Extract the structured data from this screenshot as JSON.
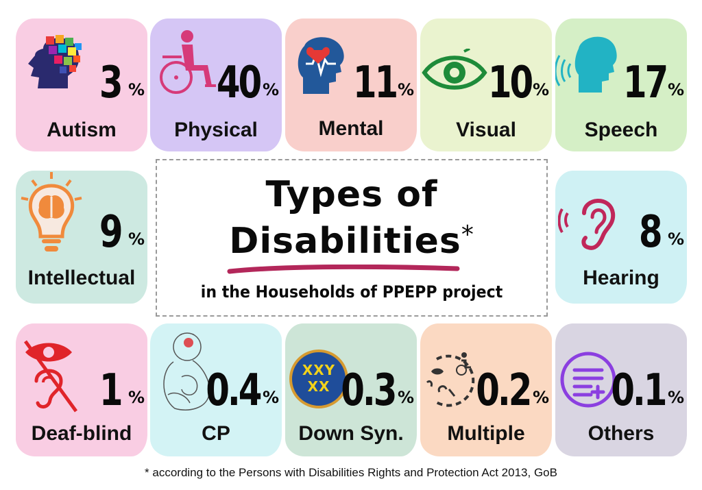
{
  "title": {
    "line1": "Types of",
    "line2": "Disabilities",
    "asterisk": "*",
    "subtitle": "in the Households of PPEPP project"
  },
  "footnote": "* according to the Persons with Disabilities Rights and Protection Act 2013, GoB",
  "cards": {
    "autism": {
      "value": "3",
      "unit": "%",
      "label": "Autism",
      "color": "#f9cde3",
      "icon": "puzzle-head-icon"
    },
    "physical": {
      "value": "40",
      "unit": "%",
      "label": "Physical",
      "color": "#d5c6f5",
      "icon": "wheelchair-icon"
    },
    "mental": {
      "value": "11",
      "unit": "%",
      "label": "Mental",
      "color": "#f9cfcb",
      "icon": "heartbeat-head-icon"
    },
    "visual": {
      "value": "10",
      "unit": "%",
      "label": "Visual",
      "color": "#eaf3cf",
      "icon": "eye-icon"
    },
    "speech": {
      "value": "17",
      "unit": "%",
      "label": "Speech",
      "color": "#d5efc6",
      "icon": "speaking-head-icon"
    },
    "intellectual": {
      "value": "9",
      "unit": "%",
      "label": "Intellectual",
      "color": "#cde9e1",
      "icon": "brain-bulb-icon"
    },
    "hearing": {
      "value": "8",
      "unit": "%",
      "label": "Hearing",
      "color": "#cff1f4",
      "icon": "ear-icon"
    },
    "deafblind": {
      "value": "1",
      "unit": "%",
      "label": "Deaf-blind",
      "color": "#f9cde3",
      "icon": "deafblind-icon"
    },
    "cp": {
      "value": "0.4",
      "unit": "%",
      "label": "CP",
      "color": "#d3f3f5",
      "icon": "baby-icon"
    },
    "downsyn": {
      "value": "0.3",
      "unit": "%",
      "label": "Down Syn.",
      "color": "#cde5d7",
      "icon": "chromosome-icon",
      "chromosomes": [
        "XXY",
        "XX"
      ]
    },
    "multiple": {
      "value": "0.2",
      "unit": "%",
      "label": "Multiple",
      "color": "#fbd9c2",
      "icon": "multiple-disability-icon"
    },
    "others": {
      "value": "0.1",
      "unit": "%",
      "label": "Others",
      "color": "#d9d5e2",
      "icon": "list-add-icon"
    }
  }
}
